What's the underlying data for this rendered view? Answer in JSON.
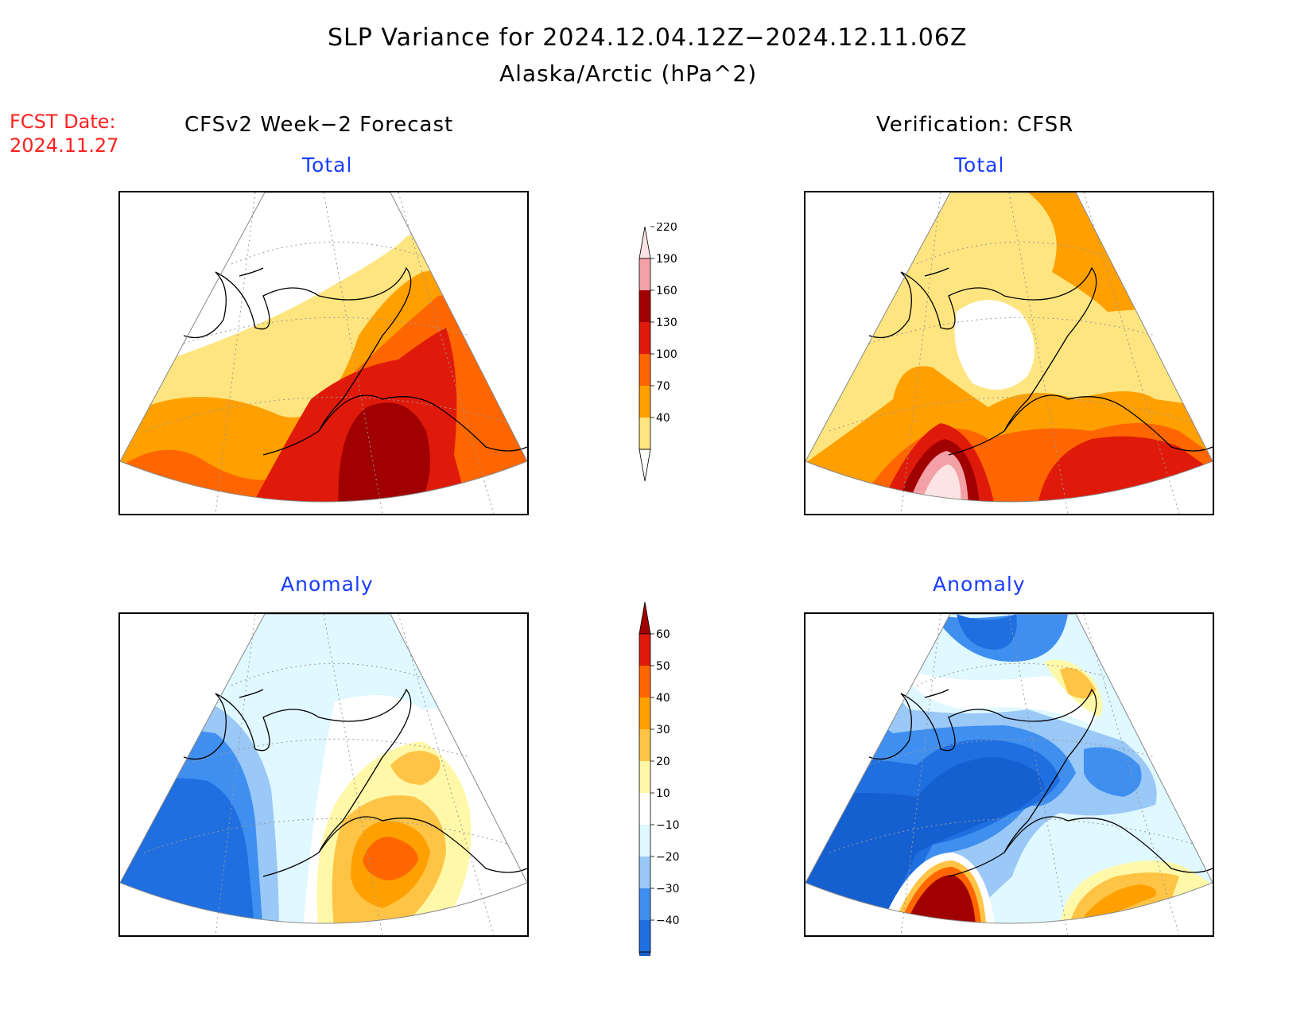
{
  "title": "SLP Variance for 2024.12.04.12Z−2024.12.11.06Z",
  "subtitle": "Alaska/Arctic (hPa^2)",
  "fcst_date": {
    "label": "FCST Date:",
    "value": "2024.11.27"
  },
  "columns": {
    "left": "CFSv2 Week−2 Forecast",
    "right": "Verification: CFSR"
  },
  "panels": {
    "forecast_total": {
      "label": "Total"
    },
    "verification_total": {
      "label": "Total"
    },
    "forecast_anomaly": {
      "label": "Anomaly"
    },
    "verification_anomaly": {
      "label": "Anomaly"
    }
  },
  "colorbars": {
    "total": {
      "levels": [
        "40",
        "70",
        "100",
        "130",
        "160",
        "190",
        "220"
      ],
      "colors": [
        "#ffe57f",
        "#ffa000",
        "#ff6600",
        "#e01a0a",
        "#a00000",
        "#f3a0a6",
        "#fde4e4"
      ],
      "under": "#ffffff"
    },
    "anomaly": {
      "levels": [
        "−40",
        "−30",
        "−20",
        "−10",
        "10",
        "20",
        "30",
        "40",
        "50",
        "60"
      ],
      "colors": [
        "#1f6fe0",
        "#3f8ff0",
        "#9ac8f7",
        "#e0f8ff",
        "#ffffff",
        "#fff8a8",
        "#ffc445",
        "#ffa000",
        "#ff6600",
        "#e01a0a",
        "#a00000"
      ],
      "under": "#1560d0"
    }
  },
  "colors": {
    "title_text": "#000000",
    "fcst_text": "#ff2020",
    "panel_label": "#1a3cff"
  }
}
